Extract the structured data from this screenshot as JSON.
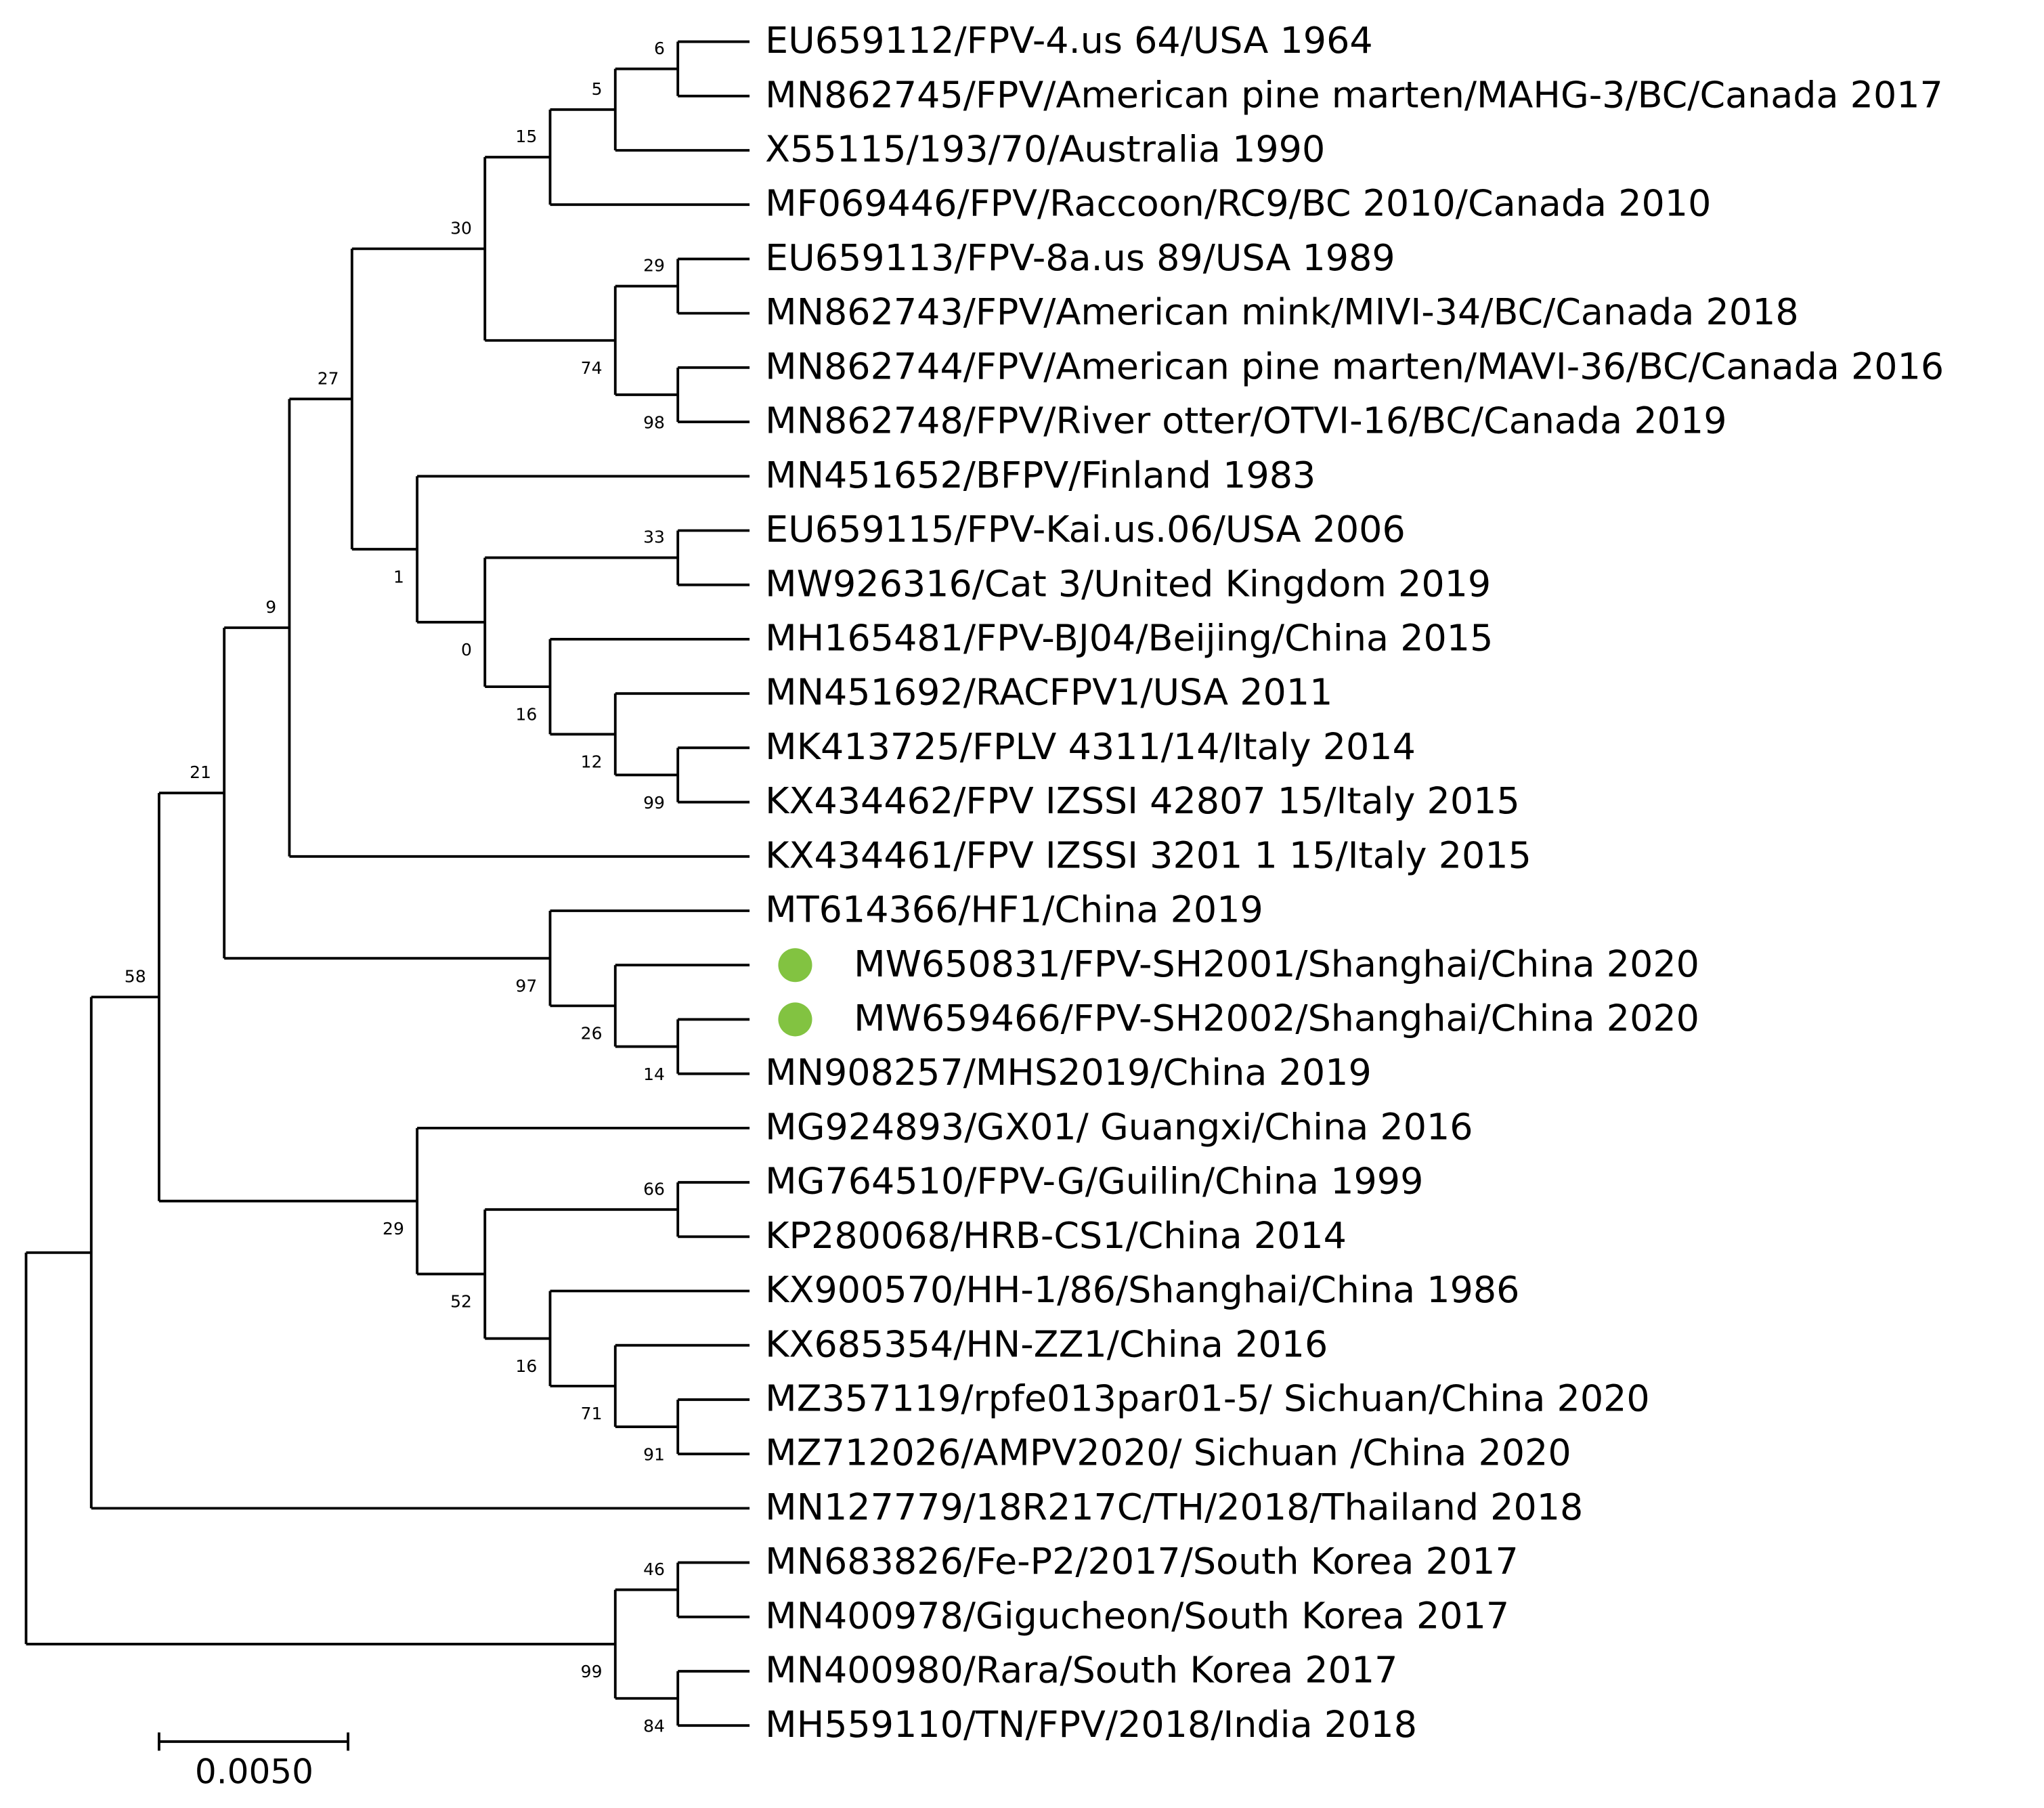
{
  "leaves": [
    "EU659112/FPV-4.us 64/USA 1964",
    "MN862745/FPV/American pine marten/MAHG-3/BC/Canada 2017",
    "X55115/193/70/Australia 1990",
    "MF069446/FPV/Raccoon/RC9/BC 2010/Canada 2010",
    "EU659113/FPV-8a.us 89/USA 1989",
    "MN862743/FPV/American mink/MIVI-34/BC/Canada 2018",
    "MN862744/FPV/American pine marten/MAVI-36/BC/Canada 2016",
    "MN862748/FPV/River otter/OTVI-16/BC/Canada 2019",
    "MN451652/BFPV/Finland 1983",
    "EU659115/FPV-Kai.us.06/USA 2006",
    "MW926316/Cat 3/United Kingdom 2019",
    "MH165481/FPV-BJ04/Beijing/China 2015",
    "MN451692/RACFPV1/USA 2011",
    "MK413725/FPLV 4311/14/Italy 2014",
    "KX434462/FPV IZSSI 42807 15/Italy 2015",
    "KX434461/FPV IZSSI 3201 1 15/Italy 2015",
    "MT614366/HF1/China 2019",
    "MW650831/FPV-SH2001/Shanghai/China 2020",
    "MW659466/FPV-SH2002/Shanghai/China 2020",
    "MN908257/MHS2019/China 2019",
    "MG924893/GX01/ Guangxi/China 2016",
    "MG764510/FPV-G/Guilin/China 1999",
    "KP280068/HRB-CS1/China 2014",
    "KX900570/HH-1/86/Shanghai/China 1986",
    "KX685354/HN-ZZ1/China 2016",
    "MZ357119/rpfe013par01-5/ Sichuan/China 2020",
    "MZ712026/AMPV2020/ Sichuan /China 2020",
    "MN127779/18R217C/TH/2018/Thailand 2018",
    "MN683826/Fe-P2/2017/South Korea 2017",
    "MN400978/Gigucheon/South Korea 2017",
    "MN400980/Rara/South Korea 2017",
    "MH559110/TN/FPV/2018/India 2018"
  ],
  "supports": [
    6,
    5,
    15,
    29,
    98,
    74,
    30,
    33,
    99,
    12,
    16,
    0,
    1,
    27,
    9,
    14,
    26,
    97,
    21,
    66,
    91,
    71,
    16,
    52,
    29,
    58,
    46,
    84,
    99
  ],
  "scale_bar": {
    "label": "0.0050"
  }
}
